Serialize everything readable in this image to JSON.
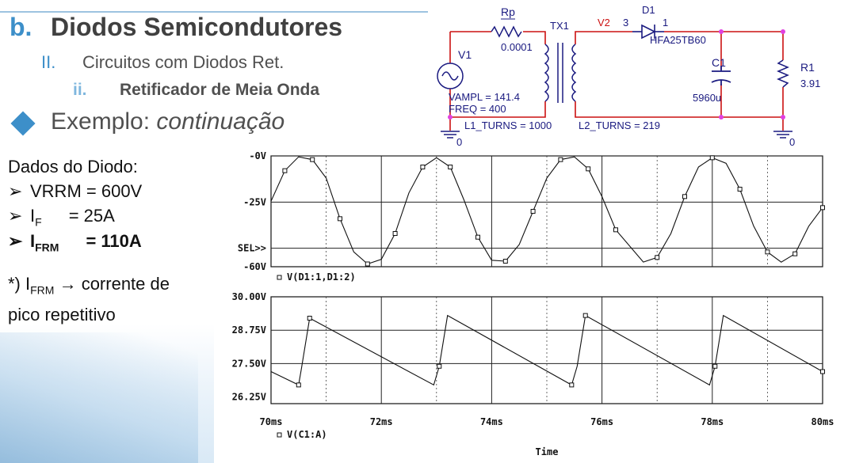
{
  "slide": {
    "title_letter": "b.",
    "title": "Diodos Semicondutores",
    "sub_numeral": "II.",
    "sub_title": "Circuitos com Diodos Ret.",
    "subsub_numeral": "ii.",
    "subsub_title": "Retificador de Meia Onda",
    "example_prefix": "Exemplo: ",
    "example_italic": "continuação"
  },
  "diode_data": {
    "heading": "Dados do Diodo:",
    "bullet": "➢",
    "vrrm": "VRRM = 600V",
    "if_label": "I",
    "if_sub": "F",
    "if_value": "= 25A",
    "ifrm_label": "I",
    "ifrm_sub": "FRM",
    "ifrm_value": "= 110A"
  },
  "note": {
    "prefix": "*) I",
    "sub": "FRM",
    "arrow": "→",
    "text_line1": " corrente de",
    "text_line2": "pico repetitivo"
  },
  "circuit": {
    "rp_name": "Rp",
    "rp_value": "0.0001",
    "tx_name": "TX1",
    "v2_label": "V2",
    "pin3": "3",
    "d1_name": "D1",
    "pin1": "1",
    "d1_model": "HFA25TB60",
    "v1_name": "V1",
    "vampl": "VAMPL = 141.4",
    "freq": "FREQ = 400",
    "l1_turns": "L1_TURNS = 1000",
    "l2_turns": "L2_TURNS = 219",
    "c1_name": "C1",
    "c1_value": "5960u",
    "r1_name": "R1",
    "r1_value": "3.91",
    "gnd1": "0",
    "gnd2": "0"
  },
  "chart_data": [
    {
      "type": "line",
      "title": "",
      "series": [
        {
          "name": "V(D1:1,D1:2)",
          "marker": "square"
        }
      ],
      "y_ticks": [
        "-0V",
        "-25V",
        "-60V"
      ],
      "sel_label": "SEL>>",
      "ylim": [
        -60,
        0
      ],
      "x_ticks": [
        "70ms",
        "72ms",
        "74ms",
        "76ms",
        "78ms",
        "80ms"
      ],
      "xlim": [
        70,
        80
      ],
      "x": [
        70.0,
        70.25,
        70.5,
        70.75,
        71.0,
        71.25,
        71.5,
        71.75,
        72.0,
        72.25,
        72.5,
        72.75,
        73.0,
        73.25,
        73.5,
        73.75,
        74.0,
        74.25,
        74.5,
        74.75,
        75.0,
        75.25,
        75.5,
        75.75,
        76.0,
        76.25,
        76.75,
        77.0,
        77.25,
        77.5,
        77.75,
        78.0,
        78.25,
        78.5,
        78.75,
        79.0,
        79.25,
        79.5,
        79.75,
        80.0
      ],
      "y": [
        -24.5,
        -8,
        -0.5,
        -2,
        -12,
        -34,
        -52,
        -58.5,
        -56,
        -42,
        -20,
        -6,
        -1,
        -6,
        -24,
        -44,
        -56.5,
        -57,
        -48,
        -30,
        -12,
        -2,
        -0.5,
        -7,
        -22,
        -40,
        -57.5,
        -55,
        -42,
        -22,
        -6,
        -1,
        -4,
        -18,
        -38,
        -52,
        -57.5,
        -53,
        -38,
        -28
      ]
    },
    {
      "type": "line",
      "title": "",
      "series": [
        {
          "name": "V(C1:A)",
          "marker": "square"
        }
      ],
      "y_ticks": [
        "30.00V",
        "28.75V",
        "27.50V",
        "26.25V"
      ],
      "ylim": [
        26.0,
        30.0
      ],
      "x_ticks": [
        "70ms",
        "72ms",
        "74ms",
        "76ms",
        "78ms",
        "80ms"
      ],
      "xlim": [
        70,
        80
      ],
      "xlabel": "Time",
      "x": [
        70.0,
        70.5,
        70.55,
        70.7,
        72.95,
        73.05,
        73.2,
        75.45,
        75.55,
        75.7,
        77.95,
        78.05,
        78.2,
        80.0
      ],
      "y": [
        27.2,
        26.7,
        27.3,
        29.2,
        26.7,
        27.4,
        29.3,
        26.7,
        27.4,
        29.3,
        26.7,
        27.4,
        29.3,
        27.2
      ]
    }
  ]
}
